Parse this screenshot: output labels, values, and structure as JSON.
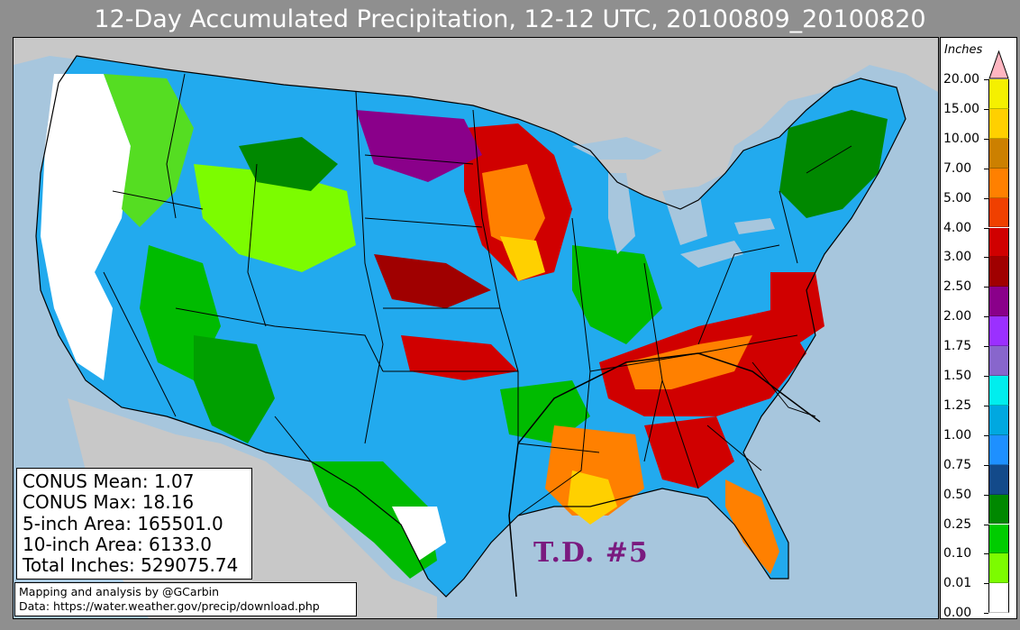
{
  "title": "12-Day Accumulated Precipitation, 12-12 UTC, 20100809_20100820",
  "stats": {
    "mean": "CONUS Mean: 1.07",
    "max": "CONUS Max: 18.16",
    "area5": "5-inch Area: 165501.0",
    "area10": "10-inch Area: 6133.0",
    "total": "Total Inches: 529075.74"
  },
  "credits": {
    "line1": "Mapping and analysis by @GCarbin",
    "line2": "Data: https://water.weather.gov/precip/download.php"
  },
  "annotation": "T.D. #5",
  "legend": {
    "title": "Inches",
    "levels": [
      {
        "label": "20.00",
        "color": "#ffb6c1"
      },
      {
        "label": "15.00",
        "color": "#f5f000"
      },
      {
        "label": "10.00",
        "color": "#ffd000"
      },
      {
        "label": "7.00",
        "color": "#cc8000"
      },
      {
        "label": "5.00",
        "color": "#ff8000"
      },
      {
        "label": "4.00",
        "color": "#f04000"
      },
      {
        "label": "3.00",
        "color": "#d00000"
      },
      {
        "label": "2.50",
        "color": "#a00000"
      },
      {
        "label": "2.00",
        "color": "#8a008a"
      },
      {
        "label": "1.75",
        "color": "#9b30ff"
      },
      {
        "label": "1.50",
        "color": "#8866cc"
      },
      {
        "label": "1.25",
        "color": "#00eeee"
      },
      {
        "label": "1.00",
        "color": "#00a8e0"
      },
      {
        "label": "0.75",
        "color": "#1e90ff"
      },
      {
        "label": "0.50",
        "color": "#134a8a"
      },
      {
        "label": "0.25",
        "color": "#008800"
      },
      {
        "label": "0.10",
        "color": "#00cc00"
      },
      {
        "label": "0.01",
        "color": "#7cfc00"
      },
      {
        "label": "0.00",
        "color": "#ffffff"
      }
    ]
  },
  "colors": {
    "ocean": "#a7c6dd",
    "land_outside": "#c8c8c8",
    "frame_bg": "#8f8f8f",
    "annotation": "#7a1a7f"
  }
}
